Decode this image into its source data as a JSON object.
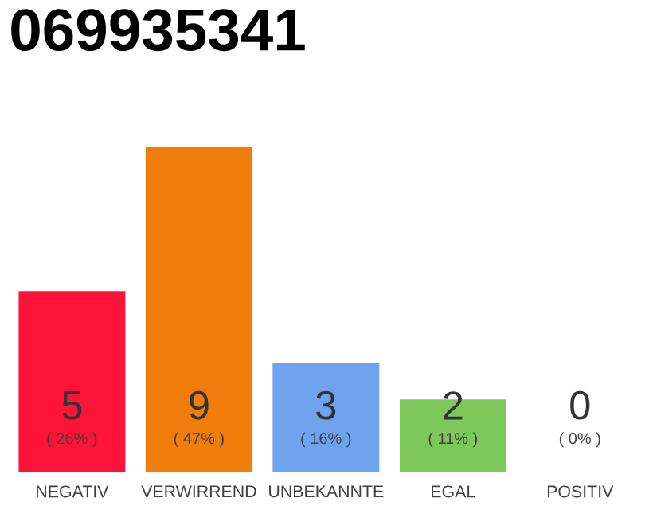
{
  "chart_data": {
    "type": "bar",
    "title": "069935341",
    "categories": [
      "NEGATIV",
      "VERWIRREND",
      "UNBEKANNTE",
      "EGAL",
      "POSITIV"
    ],
    "values": [
      5,
      9,
      3,
      2,
      0
    ],
    "colors": [
      "#ff1439",
      "#f07d0a",
      "#6fa3f0",
      "#7dc85a",
      "#cccccc"
    ],
    "value_labels": [
      "5",
      "9",
      "3",
      "2",
      "0"
    ],
    "annotations": [
      "( 26% )",
      "( 47% )",
      "( 16% )",
      "( 11% )",
      "( 0% )"
    ]
  }
}
